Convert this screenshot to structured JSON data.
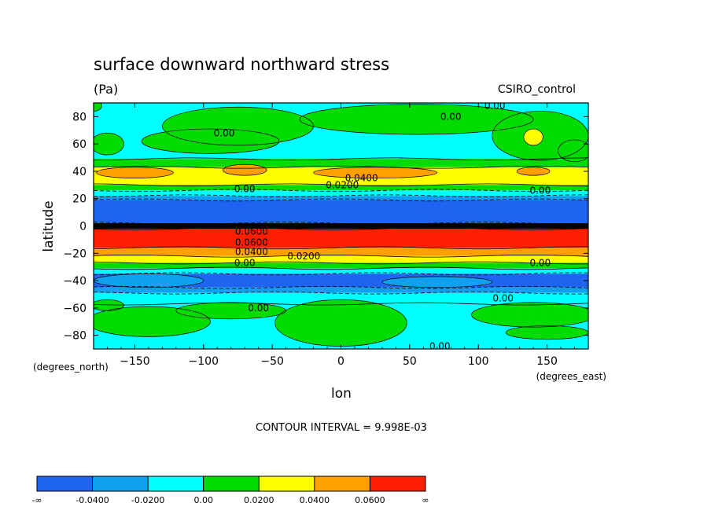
{
  "chart_data": {
    "type": "heatmap",
    "title": "surface downward northward stress",
    "units": "(Pa)",
    "dataset": "CSIRO_control",
    "xlabel": "lon",
    "ylabel": "latitude",
    "x_units": "(degrees_east)",
    "y_units": "(degrees_north)",
    "xlim": [
      -180,
      180
    ],
    "ylim": [
      -90,
      90
    ],
    "x_ticks": [
      -150,
      -100,
      -50,
      0,
      50,
      100,
      150
    ],
    "y_ticks": [
      80,
      60,
      40,
      20,
      0,
      -20,
      -40,
      -60,
      -80
    ],
    "contour_interval_text": "CONTOUR INTERVAL = 9.998E-03",
    "colorbar": {
      "bins": [
        {
          "color": "#1f64f0"
        },
        {
          "color": "#0fa0f0"
        },
        {
          "color": "#00ffff"
        },
        {
          "color": "#00dc00"
        },
        {
          "color": "#ffff00"
        },
        {
          "color": "#ffa000"
        },
        {
          "color": "#ff1e00"
        }
      ],
      "labels": [
        "-∞",
        "-0.0400",
        "-0.0200",
        "0.00",
        "0.0200",
        "0.0400",
        "0.0600",
        "∞"
      ]
    },
    "zonal_bands": [
      {
        "lat_top": 90,
        "lat_bottom": 49,
        "color": "#00ffff"
      },
      {
        "lat_top": 49,
        "lat_bottom": 43,
        "color": "#00dc00"
      },
      {
        "lat_top": 43,
        "lat_bottom": 30,
        "color": "#ffff00"
      },
      {
        "lat_top": 30,
        "lat_bottom": 26,
        "color": "#00dc00"
      },
      {
        "lat_top": 26,
        "lat_bottom": 22,
        "color": "#00ffff"
      },
      {
        "lat_top": 22,
        "lat_bottom": 19,
        "color": "#0fa0f0"
      },
      {
        "lat_top": 19,
        "lat_bottom": 2,
        "color": "#1f64f0"
      },
      {
        "lat_top": 2,
        "lat_bottom": -2,
        "color": "#000000"
      },
      {
        "lat_top": -2,
        "lat_bottom": -16,
        "color": "#ff1e00"
      },
      {
        "lat_top": -16,
        "lat_bottom": -22,
        "color": "#ffa000"
      },
      {
        "lat_top": -22,
        "lat_bottom": -27,
        "color": "#ffff00"
      },
      {
        "lat_top": -27,
        "lat_bottom": -31,
        "color": "#00dc00"
      },
      {
        "lat_top": -31,
        "lat_bottom": -35,
        "color": "#00ffff"
      },
      {
        "lat_top": -35,
        "lat_bottom": -45,
        "color": "#1f64f0"
      },
      {
        "lat_top": -45,
        "lat_bottom": -49,
        "color": "#0fa0f0"
      },
      {
        "lat_top": -49,
        "lat_bottom": -57,
        "color": "#00ffff"
      },
      {
        "lat_top": -57,
        "lat_bottom": -90,
        "color": "#00ffff"
      }
    ],
    "patches": [
      {
        "lon": -75,
        "lat": 73,
        "rlon": 55,
        "rlat": 14,
        "color": "#00dc00"
      },
      {
        "lon": -95,
        "lat": 62,
        "rlon": 50,
        "rlat": 9,
        "color": "#00dc00"
      },
      {
        "lon": 55,
        "lat": 78,
        "rlon": 85,
        "rlat": 11,
        "color": "#00dc00"
      },
      {
        "lon": 145,
        "lat": 66,
        "rlon": 35,
        "rlat": 18,
        "color": "#00dc00"
      },
      {
        "lon": 140,
        "lat": 65,
        "rlon": 7,
        "rlat": 6,
        "color": "#ffff00"
      },
      {
        "lon": 170,
        "lat": 55,
        "rlon": 12,
        "rlat": 8,
        "color": "#00dc00"
      },
      {
        "lon": -170,
        "lat": 60,
        "rlon": 12,
        "rlat": 8,
        "color": "#00dc00"
      },
      {
        "lon": -180,
        "lat": 88,
        "rlon": 6,
        "rlat": 4,
        "color": "#00dc00"
      },
      {
        "lon": -150,
        "lat": 39,
        "rlon": 28,
        "rlat": 4,
        "color": "#ffa000"
      },
      {
        "lon": -70,
        "lat": 41,
        "rlon": 16,
        "rlat": 4,
        "color": "#ffa000"
      },
      {
        "lon": 25,
        "lat": 39,
        "rlon": 45,
        "rlat": 4,
        "color": "#ffa000"
      },
      {
        "lon": 140,
        "lat": 40,
        "rlon": 12,
        "rlat": 3,
        "color": "#ffa000"
      },
      {
        "lon": -140,
        "lat": -40,
        "rlon": 40,
        "rlat": 5,
        "color": "#0fa0f0"
      },
      {
        "lon": 70,
        "lat": -41,
        "rlon": 40,
        "rlat": 4,
        "color": "#0fa0f0"
      },
      {
        "lon": -140,
        "lat": -70,
        "rlon": 45,
        "rlat": 11,
        "color": "#00dc00"
      },
      {
        "lon": -80,
        "lat": -62,
        "rlon": 40,
        "rlat": 6,
        "color": "#00dc00"
      },
      {
        "lon": 0,
        "lat": -71,
        "rlon": 48,
        "rlat": 17,
        "color": "#00dc00"
      },
      {
        "lon": 140,
        "lat": -65,
        "rlon": 45,
        "rlat": 9,
        "color": "#00dc00"
      },
      {
        "lon": 150,
        "lat": -78,
        "rlon": 30,
        "rlat": 5,
        "color": "#00dc00"
      },
      {
        "lon": -170,
        "lat": -58,
        "rlon": 12,
        "rlat": 4,
        "color": "#00dc00"
      }
    ],
    "contour_labels": [
      {
        "text": "0.00",
        "lon": -85,
        "lat": 68
      },
      {
        "text": "0.00",
        "lon": 80,
        "lat": 80
      },
      {
        "text": "0.00",
        "lon": 112,
        "lat": 88
      },
      {
        "text": "0.0400",
        "lon": 15,
        "lat": 35
      },
      {
        "text": "0.0200",
        "lon": 1,
        "lat": 30
      },
      {
        "text": "0.00",
        "lon": -70,
        "lat": 27
      },
      {
        "text": "0.00",
        "lon": 145,
        "lat": 26
      },
      {
        "text": "0.0600",
        "lon": -65,
        "lat": -4
      },
      {
        "text": "0.0600",
        "lon": -65,
        "lat": -12
      },
      {
        "text": "0.0400",
        "lon": -65,
        "lat": -19
      },
      {
        "text": "0.0200",
        "lon": -27,
        "lat": -22
      },
      {
        "text": "0.00",
        "lon": -70,
        "lat": -27
      },
      {
        "text": "0.00",
        "lon": 145,
        "lat": -27
      },
      {
        "text": "0.00",
        "lon": 118,
        "lat": -53
      },
      {
        "text": "0.00",
        "lon": -60,
        "lat": -60
      },
      {
        "text": "0.00",
        "lon": 72,
        "lat": -88
      }
    ]
  }
}
